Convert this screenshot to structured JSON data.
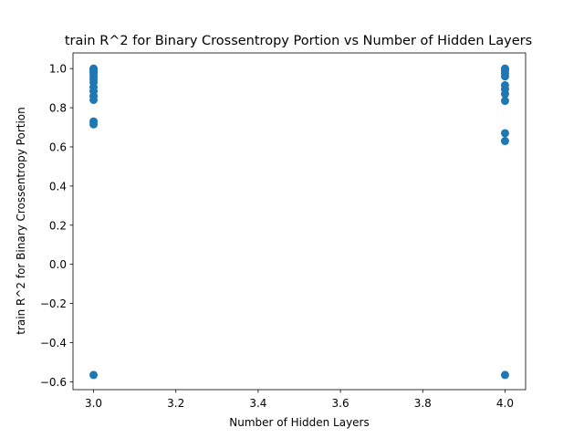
{
  "chart_data": {
    "type": "scatter",
    "title": "train R^2 for Binary Crossentropy Portion vs Number of Hidden Layers",
    "xlabel": "Number of Hidden Layers",
    "ylabel": "train R^2 for Binary Crossentropy Portion",
    "xlim": [
      2.95,
      4.05
    ],
    "ylim": [
      -0.64,
      1.08
    ],
    "xticks": [
      3.0,
      3.2,
      3.4,
      3.6,
      3.8,
      4.0
    ],
    "xtick_labels": [
      "3.0",
      "3.2",
      "3.4",
      "3.6",
      "3.8",
      "4.0"
    ],
    "yticks": [
      -0.6,
      -0.4,
      -0.2,
      0.0,
      0.2,
      0.4,
      0.6,
      0.8,
      1.0
    ],
    "ytick_labels": [
      "−0.6",
      "−0.4",
      "−0.2",
      "0.0",
      "0.2",
      "0.4",
      "0.6",
      "0.8",
      "1.0"
    ],
    "marker_color": "#1f77b4",
    "grid": false,
    "points": [
      {
        "x": 3.0,
        "y": 1.0
      },
      {
        "x": 3.0,
        "y": 0.995
      },
      {
        "x": 3.0,
        "y": 0.985
      },
      {
        "x": 3.0,
        "y": 0.975
      },
      {
        "x": 3.0,
        "y": 0.96
      },
      {
        "x": 3.0,
        "y": 0.945
      },
      {
        "x": 3.0,
        "y": 0.93
      },
      {
        "x": 3.0,
        "y": 0.905
      },
      {
        "x": 3.0,
        "y": 0.885
      },
      {
        "x": 3.0,
        "y": 0.86
      },
      {
        "x": 3.0,
        "y": 0.84
      },
      {
        "x": 3.0,
        "y": 0.73
      },
      {
        "x": 3.0,
        "y": 0.715
      },
      {
        "x": 3.0,
        "y": -0.565
      },
      {
        "x": 4.0,
        "y": 1.0
      },
      {
        "x": 4.0,
        "y": 0.99
      },
      {
        "x": 4.0,
        "y": 0.975
      },
      {
        "x": 4.0,
        "y": 0.96
      },
      {
        "x": 4.0,
        "y": 0.915
      },
      {
        "x": 4.0,
        "y": 0.895
      },
      {
        "x": 4.0,
        "y": 0.87
      },
      {
        "x": 4.0,
        "y": 0.835
      },
      {
        "x": 4.0,
        "y": 0.67
      },
      {
        "x": 4.0,
        "y": 0.63
      },
      {
        "x": 4.0,
        "y": -0.565
      }
    ]
  }
}
